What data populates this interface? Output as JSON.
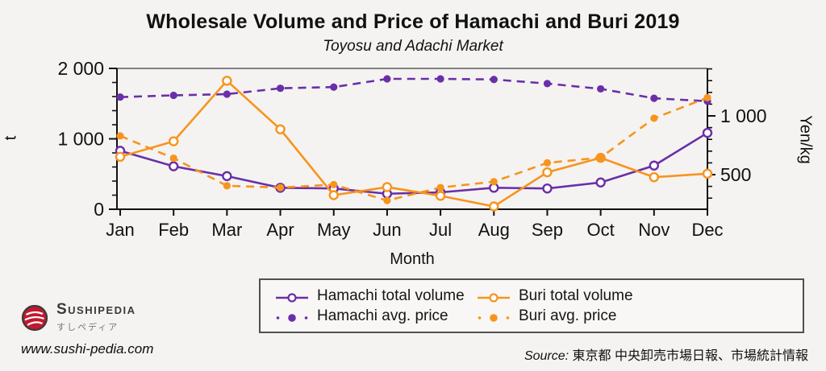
{
  "colors": {
    "hamachi_purple": "#6a2fa8",
    "buri_orange": "#f7941d",
    "grid_gray": "#808080",
    "axis_black": "#111111",
    "legend_border": "#4f4f4f",
    "logo_red": "#c4182f"
  },
  "chart_data": {
    "type": "line",
    "title": "Wholesale Volume and Price of Hamachi and Buri 2019",
    "subtitle": "Toyosu and Adachi Market",
    "xlabel": "Month",
    "x": [
      "Jan",
      "Feb",
      "Mar",
      "Apr",
      "May",
      "Jun",
      "Jul",
      "Aug",
      "Sep",
      "Oct",
      "Nov",
      "Dec"
    ],
    "left_axis": {
      "label": "t",
      "range": [
        0,
        2000
      ],
      "minor_step": 200,
      "ticks": [
        {
          "value": 0,
          "label": "0"
        },
        {
          "value": 1000,
          "label": "1 000"
        },
        {
          "value": 2000,
          "label": "2 000"
        }
      ]
    },
    "right_axis": {
      "label": "Yen/kg",
      "minor_step": 100,
      "minor_range": [
        300,
        1400
      ],
      "ticks": [
        {
          "value": 500,
          "label": "500"
        },
        {
          "value": 1000,
          "label": "1 000"
        }
      ]
    },
    "grid": "single gray line at 2000 t (top of plot)",
    "legend_position": "bottom-center",
    "series": [
      {
        "id": "hamachi-volume",
        "name": "Hamachi total volume",
        "axis": "left",
        "style": "solid",
        "marker": "open-circle",
        "color": "#6a2fa8",
        "values": [
          830,
          610,
          470,
          305,
          295,
          220,
          240,
          305,
          295,
          380,
          620,
          1085
        ]
      },
      {
        "id": "hamachi-price",
        "name": "Hamachi avg. price",
        "axis": "right",
        "style": "dashed",
        "marker": "filled-circle",
        "color": "#6a2fa8",
        "values": [
          1160,
          1175,
          1185,
          1235,
          1245,
          1315,
          1315,
          1310,
          1275,
          1230,
          1150,
          1125
        ]
      },
      {
        "id": "buri-volume",
        "name": "Buri total volume",
        "axis": "left",
        "style": "solid",
        "marker": "open-circle",
        "color": "#f7941d",
        "values": [
          745,
          965,
          1825,
          1135,
          200,
          315,
          190,
          40,
          525,
          730,
          455,
          505
        ]
      },
      {
        "id": "buri-price",
        "name": "Buri avg. price",
        "axis": "right",
        "style": "dashed",
        "marker": "filled-circle",
        "color": "#f7941d",
        "values": [
          830,
          640,
          405,
          390,
          415,
          280,
          390,
          440,
          600,
          645,
          980,
          1155
        ]
      }
    ]
  },
  "footer": {
    "brand": "Sushipedia",
    "brand_jp": "すしペディア",
    "url": "www.sushi-pedia.com",
    "source_prefix": "Source:",
    "source_text": "東京都 中央卸売市場日報、市場統計情報"
  }
}
